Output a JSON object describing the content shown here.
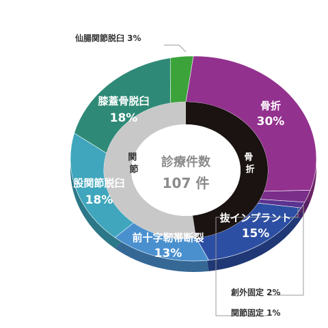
{
  "chart_data": {
    "type": "pie",
    "center": {
      "title": "診療件数",
      "total": "107 件"
    },
    "series": [
      {
        "ring": "outer",
        "slices": [
          {
            "label": "骨折",
            "value": 30,
            "pct_text": "30%",
            "color": "#93318f"
          },
          {
            "label": "創外固定",
            "value": 2,
            "pct_text": "2%",
            "color": "#7a2e8a"
          },
          {
            "label": "関節固定",
            "value": 1,
            "pct_text": "1%",
            "color": "#5b3391"
          },
          {
            "label": "抜インプラント",
            "value": 15,
            "pct_text": "15%",
            "color": "#2c4ea3"
          },
          {
            "label": "前十字靭帯断裂",
            "value": 13,
            "pct_text": "13%",
            "color": "#4a90cf"
          },
          {
            "label": "股関節脱臼",
            "value": 18,
            "pct_text": "18%",
            "color": "#3fa6bd"
          },
          {
            "label": "膝蓋骨脱臼",
            "value": 18,
            "pct_text": "18%",
            "color": "#2e8a77"
          },
          {
            "label": "仙腸関節脱臼",
            "value": 3,
            "pct_text": "3%",
            "color": "#3ba33a"
          }
        ]
      },
      {
        "ring": "inner",
        "slices": [
          {
            "label": "骨折",
            "value": 48,
            "color": "#1a1311",
            "text_color": "#ffffff"
          },
          {
            "label": "関節",
            "value": 52,
            "color": "#c8c8c8",
            "text_color": "#333333"
          }
        ]
      }
    ]
  },
  "callouts": {
    "sacroiliac": "仙腸関節脱臼 3%",
    "external_fixation": "創外固定 2%",
    "arthrodesis": "関節固定 1%"
  }
}
